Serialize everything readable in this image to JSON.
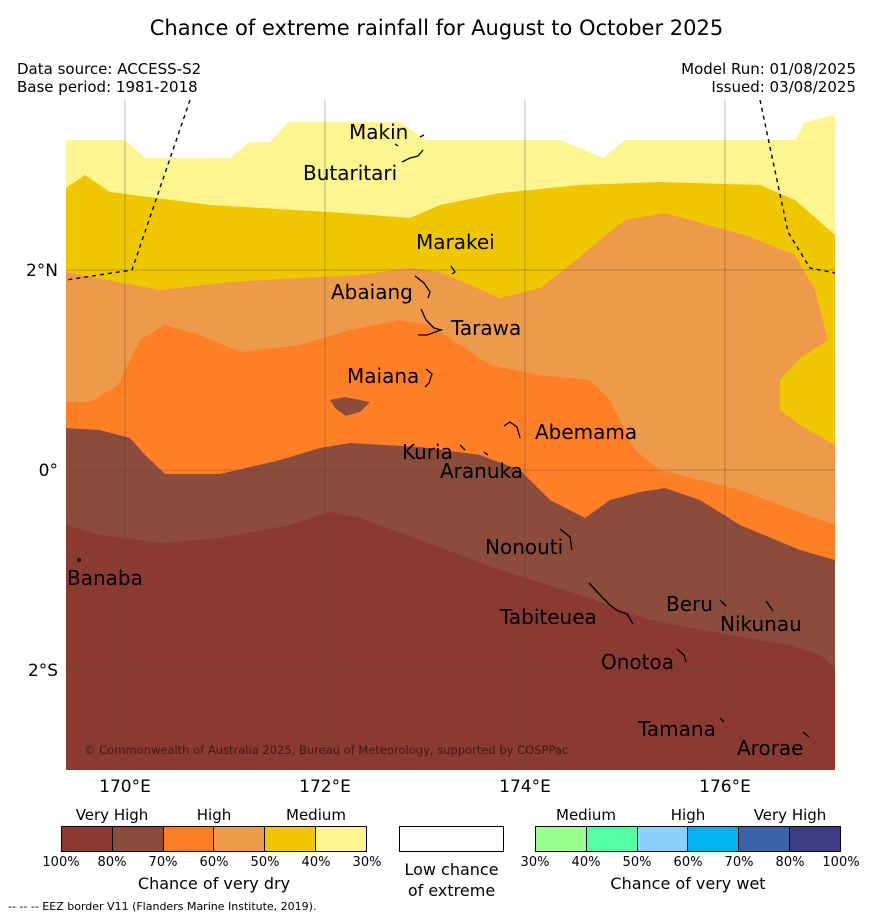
{
  "title": "Chance of extreme rainfall for August to October 2025",
  "info": {
    "data_source": "Data source: ACCESS-S2",
    "base_period": "Base period: 1981-2018",
    "model_run": "Model Run: 01/08/2025",
    "issued": "Issued: 03/08/2025"
  },
  "map": {
    "copyright": "© Commonwealth of Australia 2025, Bureau of Meteorology, supported by COSPPac",
    "lat_ticks": [
      "2°N",
      "0°",
      "2°S"
    ],
    "lon_ticks": [
      "170°E",
      "172°E",
      "174°E",
      "176°E"
    ],
    "places": [
      "Makin",
      "Butaritari",
      "Marakei",
      "Abaiang",
      "Tarawa",
      "Maiana",
      "Abemama",
      "Kuria",
      "Aranuka",
      "Nonouti",
      "Banaba",
      "Beru",
      "Nikunau",
      "Tabiteuea",
      "Onotoa",
      "Tamana",
      "Arorae"
    ]
  },
  "legend": {
    "dry": {
      "headers": [
        "Very High",
        "High",
        "Medium"
      ],
      "ticks": [
        "100%",
        "80%",
        "70%",
        "60%",
        "50%",
        "40%",
        "30%"
      ],
      "colors": [
        "#8b3a32",
        "#8b4c3c",
        "#ff7f27",
        "#ed9b4a",
        "#efc700",
        "#fdf590"
      ],
      "caption": "Chance of very dry"
    },
    "low": {
      "caption_line1": "Low chance",
      "caption_line2": "of extreme"
    },
    "wet": {
      "headers": [
        "Medium",
        "High",
        "Very High"
      ],
      "ticks": [
        "30%",
        "40%",
        "50%",
        "60%",
        "70%",
        "80%",
        "100%"
      ],
      "colors": [
        "#9bff8f",
        "#55ffa4",
        "#8fcfff",
        "#00b4f0",
        "#3a64a8",
        "#3c3c82"
      ],
      "caption": "Chance of very wet"
    }
  },
  "footnote": "--  --  -- EEZ border V11 (Flanders Marine Institute, 2019)."
}
